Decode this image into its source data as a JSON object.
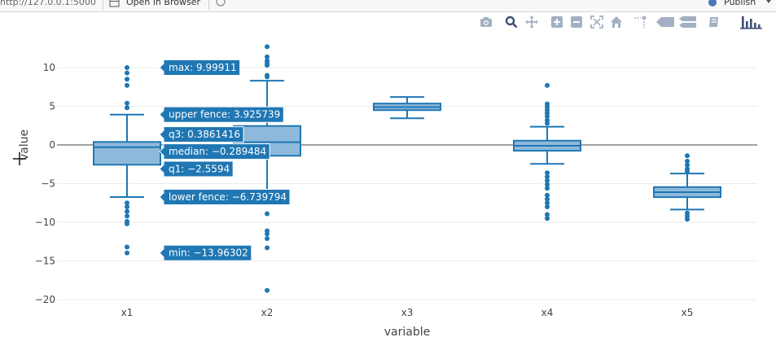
{
  "toolbar": {
    "url": "http://127.0.0.1:5000",
    "open_browser_label": "Open in Browser",
    "publish_label": "Publish"
  },
  "modebar": {
    "icons": [
      "camera-icon",
      "zoom-icon",
      "pan-icon",
      "zoom-in-icon",
      "zoom-out-icon",
      "autoscale-icon",
      "reset-axes-icon",
      "spike-lines-icon",
      "hover-closest-icon",
      "hover-compare-icon",
      "edit-chart-icon",
      "plotly-logo-icon"
    ],
    "color": "#a3afc3",
    "logo_color": "#3f4f75"
  },
  "chart_data": {
    "type": "box",
    "xlabel": "variable",
    "ylabel": "value",
    "ylim": [
      -20.5,
      13.5
    ],
    "yticks": [
      -20,
      -15,
      -10,
      -5,
      0,
      5,
      10
    ],
    "ytick_labels": [
      "−20",
      "−15",
      "−10",
      "−5",
      "0",
      "5",
      "10"
    ],
    "grid": true,
    "box_color": "#1f77b4",
    "box_fill": "#8fb9da",
    "categories": [
      "x1",
      "x2",
      "x3",
      "x4",
      "x5"
    ],
    "boxes": [
      {
        "name": "x1",
        "min": -6.739794,
        "q1": -2.5594,
        "median": -0.289484,
        "q3": 0.3861416,
        "max": 3.925739,
        "outliers": [
          9.99911,
          9.3,
          8.5,
          7.7,
          5.4,
          4.8,
          -7.5,
          -8.0,
          -8.6,
          -9.2,
          -9.9,
          -10.2,
          -13.2,
          -13.96302
        ]
      },
      {
        "name": "x2",
        "min": -6.65,
        "q1": -1.4,
        "median": 0.35,
        "q3": 2.45,
        "max": 8.3,
        "outliers": [
          12.7,
          11.4,
          10.9,
          10.6,
          10.3,
          9.0,
          8.8,
          -8.9,
          -11.1,
          -11.5,
          -12.1,
          -13.3,
          -18.8
        ]
      },
      {
        "name": "x3",
        "min": 3.45,
        "q1": 4.5,
        "median": 4.9,
        "q3": 5.35,
        "max": 6.2,
        "outliers": []
      },
      {
        "name": "x4",
        "min": -2.45,
        "q1": -0.75,
        "median": -0.1,
        "q3": 0.55,
        "max": 2.35,
        "outliers": [
          7.7,
          5.3,
          4.9,
          4.5,
          4.1,
          3.7,
          3.2,
          2.8,
          -3.6,
          -4.1,
          -4.6,
          -5.1,
          -5.6,
          -6.5,
          -7.0,
          -7.5,
          -8.0,
          -9.0,
          -9.5
        ]
      },
      {
        "name": "x5",
        "min": -8.35,
        "q1": -6.75,
        "median": -6.1,
        "q3": -5.45,
        "max": -3.7,
        "outliers": [
          -1.4,
          -2.1,
          -2.6,
          -3.1,
          -3.4,
          -8.8,
          -9.2,
          -9.6
        ]
      }
    ],
    "hover": {
      "box": "x1",
      "labels": [
        {
          "text": "max: 9.99911",
          "y": 9.99911
        },
        {
          "text": "upper fence: 3.925739",
          "y": 3.925739
        },
        {
          "text": "q3: 0.3861416",
          "y": 1.35
        },
        {
          "text": "median: −0.289484",
          "y": -0.85
        },
        {
          "text": "q1: −2.5594",
          "y": -3.1
        },
        {
          "text": "lower fence: −6.739794",
          "y": -6.739794
        },
        {
          "text": "min: −13.96302",
          "y": -13.96302
        }
      ]
    }
  }
}
